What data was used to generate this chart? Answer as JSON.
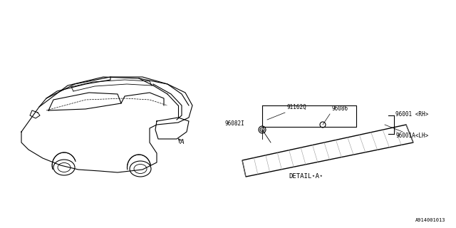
{
  "bg_color": "#ffffff",
  "line_color": "#000000",
  "light_line": "#aaaaaa",
  "part_numbers": {
    "main_label_rh": "96001 <RH>",
    "main_label_lh": "96001A<LH>",
    "clip": "91162Q",
    "bolt": "96086",
    "grommet": "96082I"
  },
  "detail_label": "DETAIL⋆A⋆",
  "diagram_id": "A914001013",
  "car_label": "A",
  "figure_title": ""
}
